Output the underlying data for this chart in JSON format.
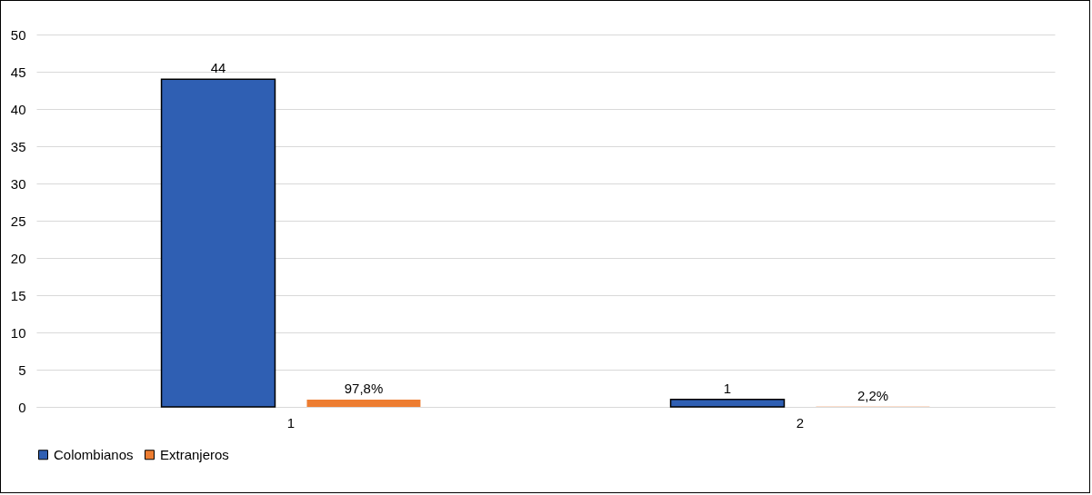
{
  "chart_data": {
    "type": "bar",
    "categories": [
      "1",
      "2"
    ],
    "series": [
      {
        "name": "Colombianos",
        "color": "#2f5fb3",
        "values": [
          44,
          1
        ],
        "value_labels": [
          "44",
          "1"
        ]
      },
      {
        "name": "Extranjeros",
        "color": "#ed7d31",
        "values": [
          0.978,
          0.022
        ],
        "value_labels": [
          "97,8%",
          "2,2%"
        ]
      }
    ],
    "ylim": [
      0,
      50
    ],
    "yticks": [
      0,
      5,
      10,
      15,
      20,
      25,
      30,
      35,
      40,
      45,
      50
    ],
    "grid": "y",
    "legend": "bottom"
  }
}
